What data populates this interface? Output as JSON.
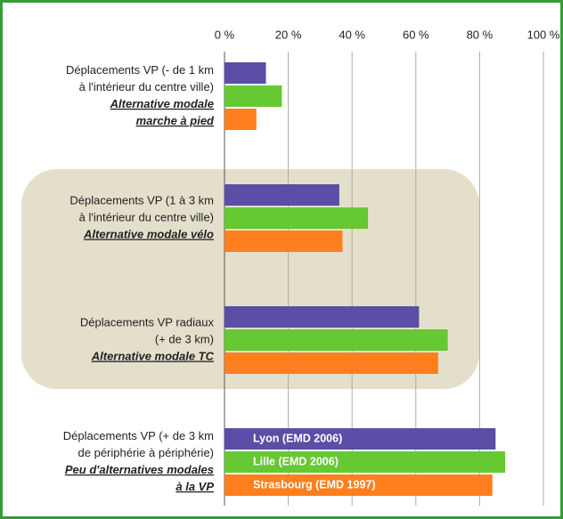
{
  "chart_data": {
    "type": "bar",
    "orientation": "horizontal",
    "categories": [
      {
        "label": [
          "Déplacements VP (- de 1 km",
          "à l'intérieur du centre ville)"
        ],
        "note": [
          "Alternative modale",
          "marche à pied"
        ]
      },
      {
        "label": [
          "Déplacements VP (1 à 3 km",
          "à l'intérieur du centre ville)"
        ],
        "note": [
          "Alternative modale vélo"
        ]
      },
      {
        "label": [
          "Déplacements VP radiaux",
          "(+ de 3 km)"
        ],
        "note": [
          "Alternative modale TC"
        ]
      },
      {
        "label": [
          "Déplacements VP (+ de 3 km",
          "de périphérie à périphérie)"
        ],
        "note": [
          "Peu d'alternatives modales",
          "à la VP"
        ]
      }
    ],
    "series": [
      {
        "name": "Lyon (EMD 2006)",
        "color": "#5a4ea6",
        "values": [
          13,
          36,
          61,
          85
        ]
      },
      {
        "name": "Lille (EMD 2006)",
        "color": "#66c832",
        "values": [
          18,
          45,
          70,
          88
        ]
      },
      {
        "name": "Strasbourg (EMD 1997)",
        "color": "#ff7f1e",
        "values": [
          10,
          37,
          67,
          84
        ]
      }
    ],
    "xlim": [
      0,
      100
    ],
    "xticks": [
      {
        "value": 0,
        "label": "0 %"
      },
      {
        "value": 20,
        "label": "20 %"
      },
      {
        "value": 40,
        "label": "40 %"
      },
      {
        "value": 60,
        "label": "60 %"
      },
      {
        "value": 80,
        "label": "80 %"
      },
      {
        "value": 100,
        "label": "100 %"
      }
    ],
    "grid": true
  }
}
